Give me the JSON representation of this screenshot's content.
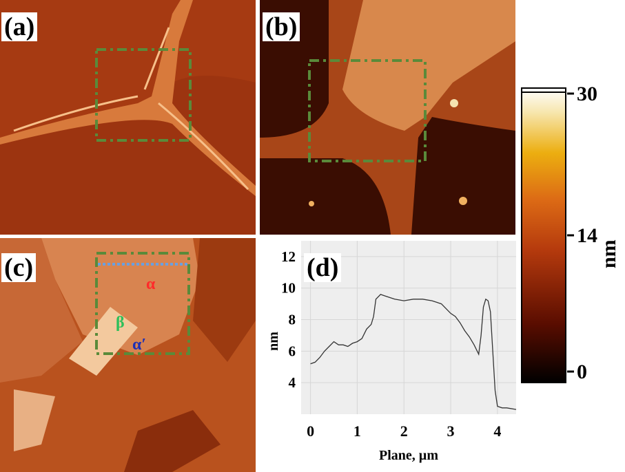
{
  "panels": {
    "a": {
      "label": "(a)"
    },
    "b": {
      "label": "(b)"
    },
    "c": {
      "label": "(c)",
      "phases": {
        "alpha": "α",
        "beta": "β",
        "alpha_prime": "α′"
      },
      "phase_colors": {
        "alpha": "#ff2a2a",
        "beta": "#2ebf5a",
        "alpha_prime": "#1c2fb5"
      }
    },
    "d": {
      "label": "(d)"
    }
  },
  "colorbar": {
    "ticks": [
      "30",
      "14",
      "0"
    ],
    "unit": "nm",
    "colors": [
      "#000000",
      "#5a0d00",
      "#b53a0d",
      "#dc6a15",
      "#ecae10",
      "#f7e7b0",
      "#ffffff"
    ]
  },
  "colors": {
    "roi_box": "#5a8a3a",
    "profile_line": "#6aa0e0",
    "plot_bg": "#eeeeee"
  },
  "chart_data": {
    "type": "line",
    "xlabel": "Plane, µm",
    "ylabel": "nm",
    "xlim": [
      -0.2,
      4.4
    ],
    "ylim": [
      2.0,
      13.0
    ],
    "xticks": [
      "0",
      "1",
      "2",
      "3",
      "4"
    ],
    "yticks": [
      "4",
      "6",
      "8",
      "10",
      "12"
    ],
    "grid": true,
    "series": [
      {
        "x": [
          0.0,
          0.1,
          0.2,
          0.3,
          0.4,
          0.5,
          0.6,
          0.7,
          0.8,
          0.9,
          1.0,
          1.1,
          1.2,
          1.3,
          1.35,
          1.4,
          1.5,
          1.6,
          1.8,
          2.0,
          2.2,
          2.4,
          2.6,
          2.8,
          3.0,
          3.1,
          3.2,
          3.3,
          3.4,
          3.5,
          3.6,
          3.65,
          3.7,
          3.75,
          3.8,
          3.85,
          3.9,
          3.95,
          4.0,
          4.1,
          4.2,
          4.4
        ],
        "y": [
          5.2,
          5.3,
          5.6,
          6.0,
          6.3,
          6.6,
          6.4,
          6.4,
          6.3,
          6.5,
          6.6,
          6.8,
          7.4,
          7.7,
          8.2,
          9.3,
          9.6,
          9.5,
          9.3,
          9.2,
          9.3,
          9.3,
          9.2,
          9.0,
          8.4,
          8.2,
          7.8,
          7.3,
          6.9,
          6.4,
          5.8,
          7.0,
          8.8,
          9.3,
          9.2,
          8.5,
          6.0,
          3.5,
          2.5,
          2.4,
          2.4,
          2.3
        ]
      }
    ]
  }
}
